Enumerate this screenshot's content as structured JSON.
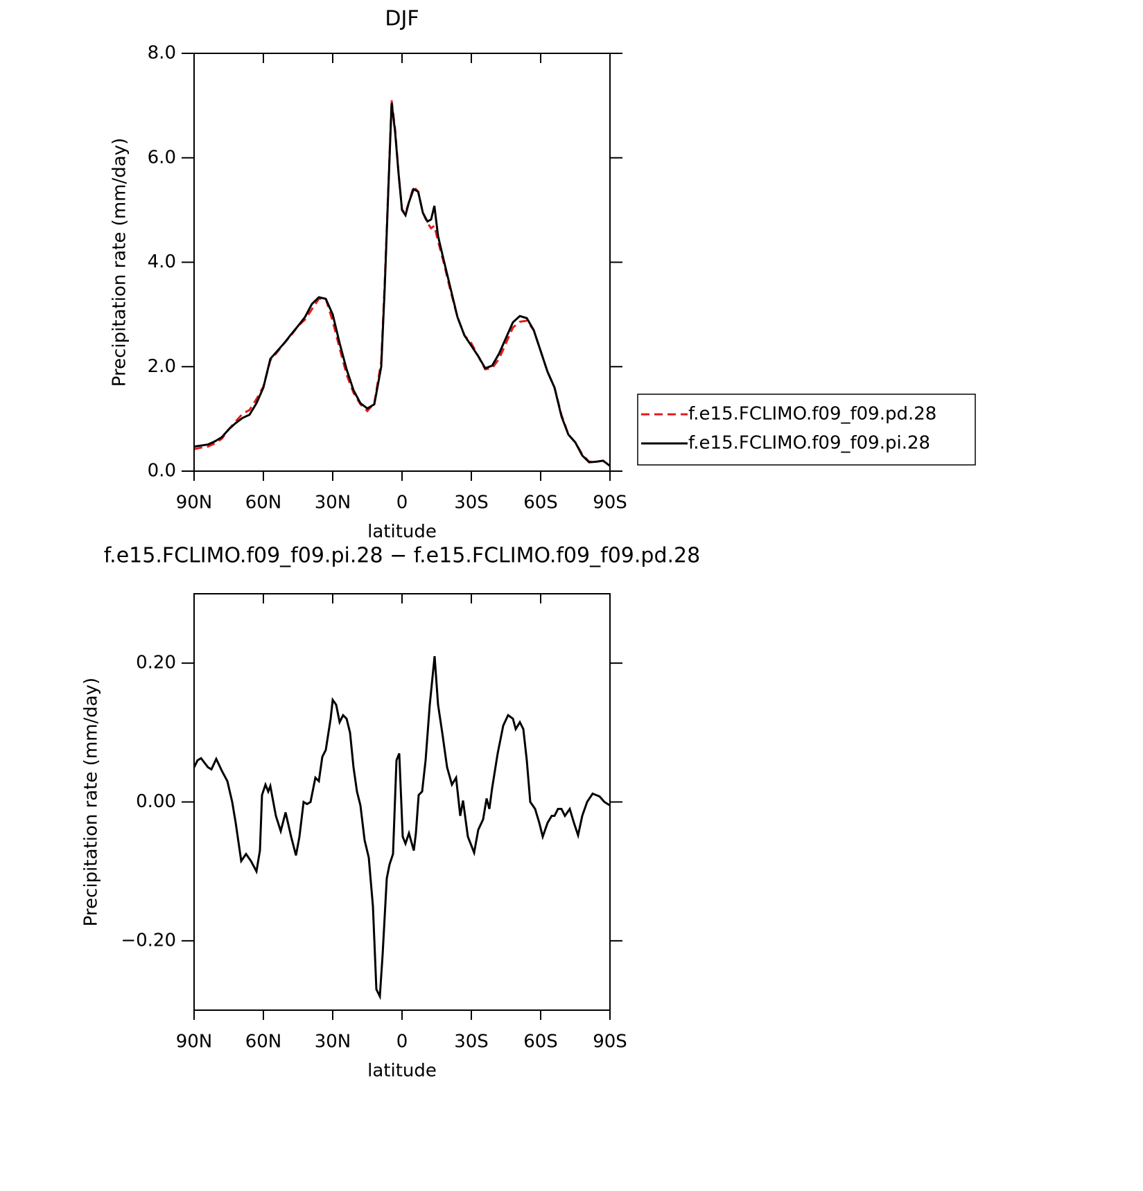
{
  "chart_data": [
    {
      "type": "line",
      "title": "DJF",
      "xlabel": "latitude",
      "ylabel": "Precipitation rate (mm/day)",
      "x": [
        90,
        87,
        84,
        81,
        78,
        75,
        72,
        69,
        66,
        63,
        60,
        57,
        54,
        51,
        48,
        45,
        42,
        39,
        36,
        33,
        30,
        27,
        24,
        21,
        18,
        15,
        12,
        9,
        7.5,
        6,
        4.5,
        3,
        1.5,
        0,
        -1.5,
        -3,
        -5,
        -7,
        -9,
        -11,
        -12.6,
        -14,
        -15.6,
        -18,
        -21,
        -24,
        -27,
        -30,
        -33,
        -36,
        -39,
        -42,
        -45,
        -48,
        -51,
        -54,
        -57,
        -60,
        -63,
        -66,
        -69,
        -72,
        -75,
        -78,
        -81,
        -84,
        -87,
        -90
      ],
      "series": [
        {
          "name": "f.e15.FCLIMO.f09_f09.pd.28",
          "color": "#e41a1c",
          "line_style": "dashed",
          "values": [
            0.42,
            0.45,
            0.47,
            0.53,
            0.62,
            0.8,
            0.95,
            1.1,
            1.17,
            1.38,
            1.62,
            2.12,
            2.28,
            2.45,
            2.6,
            2.78,
            2.9,
            3.1,
            3.3,
            3.3,
            2.87,
            2.35,
            1.85,
            1.5,
            1.28,
            1.15,
            1.3,
            2.1,
            3.6,
            5.35,
            7.1,
            6.55,
            5.7,
            5.0,
            4.95,
            5.15,
            5.45,
            5.35,
            4.95,
            4.75,
            4.65,
            4.7,
            4.4,
            4.0,
            3.45,
            2.95,
            2.6,
            2.45,
            2.2,
            1.95,
            1.97,
            2.15,
            2.45,
            2.75,
            2.86,
            2.88,
            2.7,
            2.3,
            1.9,
            1.6,
            1.08,
            0.7,
            0.55,
            0.32,
            0.18,
            0.18,
            0.2,
            0.1
          ]
        },
        {
          "name": "f.e15.FCLIMO.f09_f09.pi.28",
          "color": "#000000",
          "line_style": "solid",
          "values": [
            0.47,
            0.49,
            0.51,
            0.57,
            0.65,
            0.8,
            0.92,
            1.02,
            1.08,
            1.3,
            1.6,
            2.15,
            2.3,
            2.45,
            2.62,
            2.78,
            2.95,
            3.2,
            3.33,
            3.3,
            3.0,
            2.45,
            1.95,
            1.55,
            1.3,
            1.2,
            1.28,
            2.0,
            3.5,
            5.3,
            7.05,
            6.5,
            5.7,
            5.0,
            4.9,
            5.15,
            5.4,
            5.35,
            4.95,
            4.78,
            4.82,
            5.08,
            4.5,
            4.05,
            3.5,
            2.95,
            2.6,
            2.4,
            2.2,
            1.97,
            2.02,
            2.25,
            2.55,
            2.85,
            2.97,
            2.93,
            2.7,
            2.3,
            1.9,
            1.6,
            1.05,
            0.7,
            0.55,
            0.3,
            0.17,
            0.18,
            0.2,
            0.1
          ]
        }
      ],
      "xlim": [
        90,
        -90
      ],
      "xticks": [
        {
          "value": 90,
          "label": "90N"
        },
        {
          "value": 60,
          "label": "60N"
        },
        {
          "value": 30,
          "label": "30N"
        },
        0,
        {
          "value": -30,
          "label": "30S"
        },
        {
          "value": -60,
          "label": "60S"
        },
        {
          "value": -90,
          "label": "90S"
        }
      ],
      "ylim": [
        0,
        8
      ],
      "yticks": [
        {
          "value": 0,
          "label": "0.0"
        },
        {
          "value": 2,
          "label": "2.0"
        },
        {
          "value": 4,
          "label": "4.0"
        },
        {
          "value": 6,
          "label": "6.0"
        },
        {
          "value": 8,
          "label": "8.0"
        }
      ],
      "legend": "right"
    },
    {
      "type": "line",
      "title": "f.e15.FCLIMO.f09_f09.pi.28 − f.e15.FCLIMO.f09_f09.pd.28",
      "xlabel": "latitude",
      "ylabel": "Precipitation rate (mm/day)",
      "x": [
        90,
        88.5,
        87,
        84,
        82.5,
        80.4,
        78,
        75.6,
        73.5,
        72,
        69.6,
        67.5,
        65.4,
        63,
        61.5,
        60.6,
        59.1,
        57.9,
        57,
        54.6,
        52.5,
        50.4,
        48,
        45.9,
        44.4,
        42.6,
        41.1,
        39.6,
        37.5,
        36,
        34.5,
        33,
        30.9,
        30,
        28.5,
        27,
        25.5,
        24,
        22.5,
        21,
        19.5,
        18,
        16.2,
        14.4,
        12.6,
        11.1,
        9.6,
        8.4,
        6.6,
        5.4,
        3.9,
        2.4,
        1.2,
        -0.3,
        -1.5,
        -3,
        -5.1,
        -6,
        -7.2,
        -8.7,
        -10.2,
        -12,
        -14.1,
        -15.6,
        -17.4,
        -19.5,
        -21.6,
        -23.4,
        -25.2,
        -26.4,
        -28.5,
        -31.2,
        -33,
        -35.1,
        -36.6,
        -37.8,
        -39,
        -41.4,
        -43.8,
        -45.9,
        -48,
        -49.2,
        -51,
        -52.5,
        -54,
        -55.5,
        -57.6,
        -59.4,
        -60.9,
        -63,
        -64.8,
        -66,
        -67.5,
        -69,
        -70.5,
        -72.6,
        -74.4,
        -76.2,
        -78,
        -80.1,
        -82.5,
        -84,
        -85.5,
        -87.6,
        -90
      ],
      "series": [
        {
          "color": "#000000",
          "line_style": "solid",
          "values": [
            0.05,
            0.06,
            0.063,
            0.05,
            0.047,
            0.062,
            0.045,
            0.03,
            0.0,
            -0.03,
            -0.085,
            -0.075,
            -0.085,
            -0.1,
            -0.07,
            0.01,
            0.025,
            0.015,
            0.023,
            -0.02,
            -0.042,
            -0.015,
            -0.05,
            -0.077,
            -0.05,
            0.0,
            -0.003,
            0.0,
            0.035,
            0.03,
            0.065,
            0.075,
            0.12,
            0.147,
            0.14,
            0.115,
            0.125,
            0.12,
            0.1,
            0.05,
            0.015,
            -0.005,
            -0.055,
            -0.08,
            -0.15,
            -0.27,
            -0.28,
            -0.22,
            -0.11,
            -0.09,
            -0.075,
            0.06,
            0.07,
            -0.05,
            -0.06,
            -0.045,
            -0.07,
            -0.045,
            0.01,
            0.015,
            0.06,
            0.14,
            0.21,
            0.14,
            0.1,
            0.05,
            0.025,
            0.035,
            -0.02,
            0.002,
            -0.05,
            -0.073,
            -0.04,
            -0.025,
            0.005,
            -0.01,
            0.02,
            0.07,
            0.11,
            0.125,
            0.12,
            0.105,
            0.115,
            0.105,
            0.06,
            0.0,
            -0.01,
            -0.03,
            -0.05,
            -0.03,
            -0.02,
            -0.02,
            -0.01,
            -0.01,
            -0.02,
            -0.01,
            -0.03,
            -0.048,
            -0.02,
            0.0,
            0.012,
            0.01,
            0.008,
            0.0,
            -0.005
          ]
        }
      ],
      "xlim": [
        90,
        -90
      ],
      "xticks": [
        {
          "value": 90,
          "label": "90N"
        },
        {
          "value": 60,
          "label": "60N"
        },
        {
          "value": 30,
          "label": "30N"
        },
        0,
        {
          "value": -30,
          "label": "30S"
        },
        {
          "value": -60,
          "label": "60S"
        },
        {
          "value": -90,
          "label": "90S"
        }
      ],
      "ylim": [
        -0.3,
        0.3
      ],
      "yticks": [
        {
          "value": -0.2,
          "label": "−0.20"
        },
        {
          "value": 0,
          "label": "0.00"
        },
        {
          "value": 0.2,
          "label": "0.20"
        }
      ]
    }
  ]
}
